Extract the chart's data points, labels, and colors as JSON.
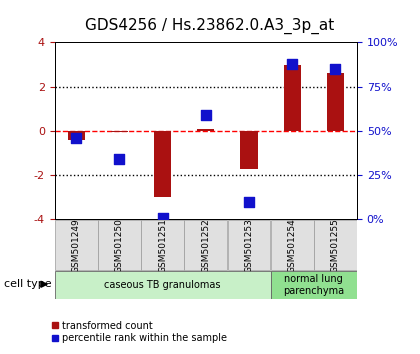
{
  "title": "GDS4256 / Hs.23862.0.A3_3p_at",
  "samples": [
    "GSM501249",
    "GSM501250",
    "GSM501251",
    "GSM501252",
    "GSM501253",
    "GSM501254",
    "GSM501255"
  ],
  "transformed_count": [
    -0.4,
    -0.05,
    -3.0,
    0.1,
    -1.7,
    3.0,
    2.6
  ],
  "percentile_rank": [
    46,
    34,
    1,
    59,
    10,
    88,
    85
  ],
  "ylim_left": [
    -4,
    4
  ],
  "ylim_right": [
    0,
    100
  ],
  "yticks_left": [
    -4,
    -2,
    0,
    2,
    4
  ],
  "yticks_right": [
    0,
    25,
    50,
    75,
    100
  ],
  "ytick_labels_right": [
    "0%",
    "25%",
    "50%",
    "75%",
    "100%"
  ],
  "hlines": [
    {
      "y": -2,
      "style": "dotted",
      "color": "black"
    },
    {
      "y": 0,
      "style": "dashed",
      "color": "red"
    },
    {
      "y": 2,
      "style": "dotted",
      "color": "black"
    }
  ],
  "bar_color": "#aa1111",
  "dot_color": "#1111cc",
  "bar_width": 0.4,
  "dot_size": 55,
  "cell_type_groups": [
    {
      "label": "caseous TB granulomas",
      "start": 0,
      "end": 4,
      "color": "#c8f0c8"
    },
    {
      "label": "normal lung\nparenchyma",
      "start": 5,
      "end": 6,
      "color": "#90e090"
    }
  ],
  "cell_type_label": "cell type",
  "legend_red_label": "transformed count",
  "legend_blue_label": "percentile rank within the sample",
  "background_color": "#ffffff",
  "plot_bg_color": "#ffffff",
  "tick_color_left": "#aa1111",
  "tick_color_right": "#1111cc",
  "title_fontsize": 11,
  "tick_fontsize": 8,
  "sample_fontsize": 6.5,
  "cell_fontsize": 7,
  "legend_fontsize": 7
}
